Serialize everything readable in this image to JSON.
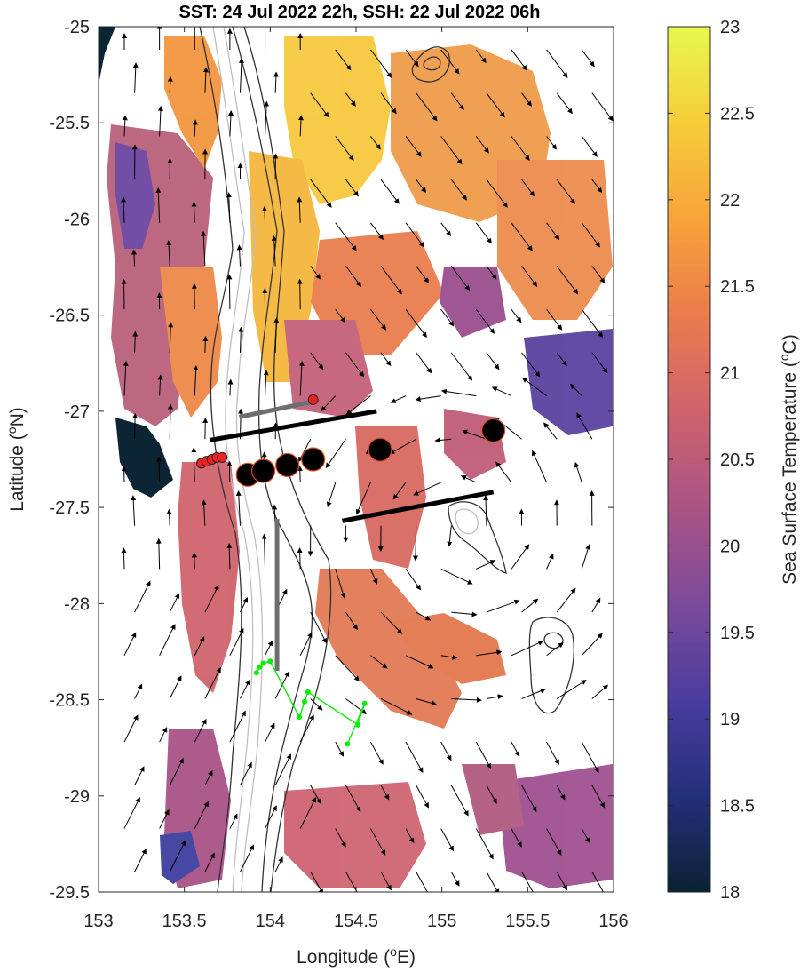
{
  "title": "SST: 24 Jul 2022 22h, SSH: 22 Jul 2022 06h",
  "xlabel_main": "Longitude (",
  "xlabel_sup": "o",
  "xlabel_end": "E)",
  "ylabel_main": "Latitude (",
  "ylabel_sup": "o",
  "ylabel_end": "N)",
  "colorbar": {
    "label_main": "Sea Surface Temperature (",
    "label_sup": "o",
    "label_end": "C)",
    "ticks": [
      "18",
      "18.5",
      "19",
      "19.5",
      "20",
      "20.5",
      "21",
      "21.5",
      "22",
      "22.5",
      "23"
    ],
    "range": [
      18,
      23
    ],
    "colormap": [
      "#0a2233",
      "#23307a",
      "#4a3c9e",
      "#7a4a9a",
      "#a85386",
      "#d0636c",
      "#ec7c4c",
      "#f8a43a",
      "#f6cd3a",
      "#e8f84f"
    ]
  },
  "chart_data": {
    "type": "map",
    "x_ticks": [
      "153",
      "153.5",
      "154",
      "154.5",
      "155",
      "155.5",
      "156"
    ],
    "y_ticks": [
      "-25",
      "-25.5",
      "-26",
      "-26.5",
      "-27",
      "-27.5",
      "-28",
      "-28.5",
      "-29",
      "-29.5"
    ],
    "xlim": [
      153,
      156
    ],
    "ylim": [
      -29.5,
      -25
    ],
    "sst_patches": [
      {
        "lon": 153.6,
        "lat": -26.6,
        "sst": 20.5
      },
      {
        "lon": 154.4,
        "lat": -25.6,
        "sst": 22.3
      },
      {
        "lon": 155.3,
        "lat": -26.1,
        "sst": 21.7
      },
      {
        "lon": 155.6,
        "lat": -26.9,
        "sst": 19.5
      },
      {
        "lon": 154.6,
        "lat": -28.3,
        "sst": 21.4
      },
      {
        "lon": 155.3,
        "lat": -29.1,
        "sst": 20.3
      }
    ],
    "large_moorings": [
      {
        "lon": 153.87,
        "lat": -27.33
      },
      {
        "lon": 153.96,
        "lat": -27.31
      },
      {
        "lon": 154.1,
        "lat": -27.28
      },
      {
        "lon": 154.25,
        "lat": -27.25
      },
      {
        "lon": 154.64,
        "lat": -27.2
      },
      {
        "lon": 155.3,
        "lat": -27.1
      }
    ],
    "small_moorings": [
      {
        "lon": 153.6,
        "lat": -27.27
      },
      {
        "lon": 153.63,
        "lat": -27.26
      },
      {
        "lon": 153.66,
        "lat": -27.25
      },
      {
        "lon": 153.69,
        "lat": -27.24
      },
      {
        "lon": 153.72,
        "lat": -27.24
      },
      {
        "lon": 154.25,
        "lat": -26.94
      }
    ],
    "black_lines": [
      {
        "lon": [
          153.65,
          154.62
        ],
        "lat": [
          -27.15,
          -27.0
        ]
      },
      {
        "lon": [
          154.42,
          155.3
        ],
        "lat": [
          -27.57,
          -27.42
        ]
      }
    ],
    "gray_lines": [
      {
        "lon": [
          153.82,
          154.25
        ],
        "lat": [
          -27.03,
          -26.95
        ]
      },
      {
        "lon": [
          154.04,
          154.04
        ],
        "lat": [
          -27.56,
          -28.35
        ]
      }
    ],
    "green_track": {
      "lon": [
        153.92,
        153.94,
        153.96,
        154.0,
        154.17,
        154.2,
        154.22,
        154.51,
        154.55,
        154.45
      ],
      "lat": [
        -28.36,
        -28.33,
        -28.31,
        -28.3,
        -28.59,
        -28.51,
        -28.46,
        -28.63,
        -28.52,
        -28.73
      ]
    }
  }
}
